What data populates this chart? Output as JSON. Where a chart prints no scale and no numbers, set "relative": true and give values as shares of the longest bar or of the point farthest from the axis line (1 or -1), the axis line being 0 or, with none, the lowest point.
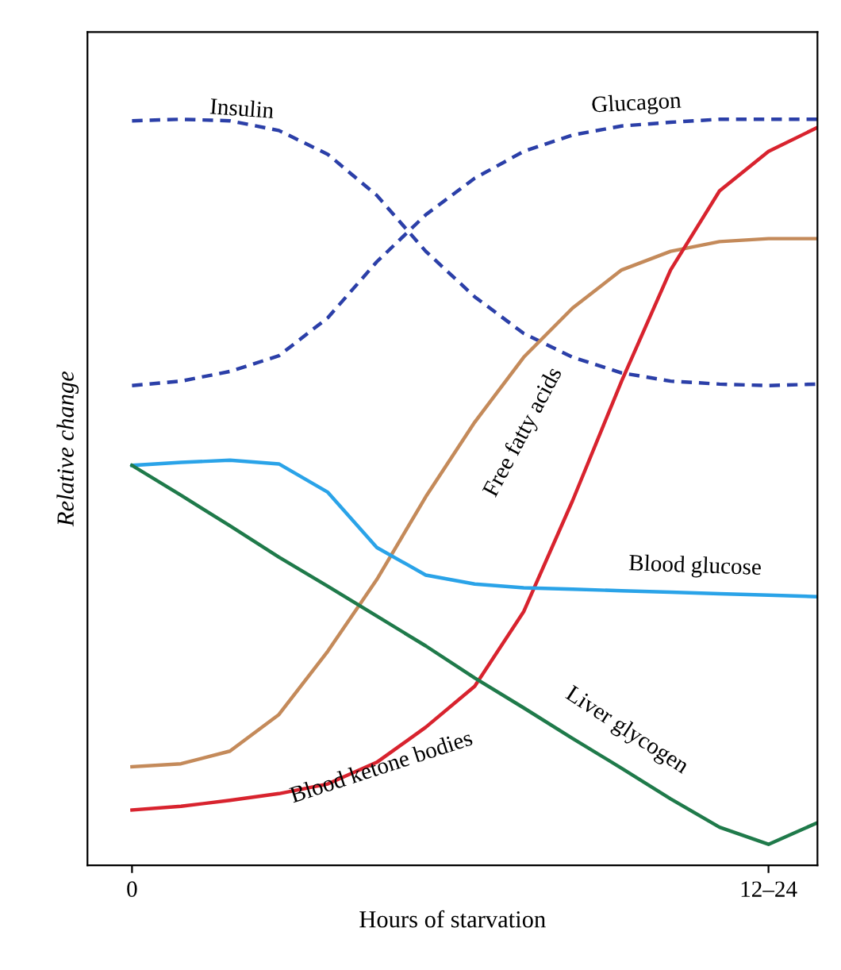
{
  "chart_data": {
    "type": "line",
    "relative": true,
    "xlabel": "Hours of starvation",
    "ylabel": "Relative change",
    "categories": [
      "0",
      null,
      null,
      null,
      null,
      null,
      null,
      null,
      null,
      null,
      null,
      null,
      null,
      "12–24",
      null
    ],
    "grid": false,
    "legend": false,
    "marker": "none",
    "series": [
      {
        "name": "Insulin",
        "color": "#2b3fa8",
        "line_style": "dashed",
        "values": [
          0.998,
          1.0,
          0.998,
          0.985,
          0.953,
          0.898,
          0.823,
          0.762,
          0.713,
          0.681,
          0.66,
          0.649,
          0.645,
          0.643,
          0.645
        ]
      },
      {
        "name": "Glucagon",
        "color": "#2b3fa8",
        "line_style": "dashed",
        "values": [
          0.643,
          0.649,
          0.662,
          0.683,
          0.734,
          0.809,
          0.872,
          0.921,
          0.957,
          0.979,
          0.991,
          0.996,
          1.0,
          1.0,
          1.0
        ]
      },
      {
        "name": "Free fatty acids",
        "color": "#c48a5a",
        "line_style": "solid",
        "values": [
          0.132,
          0.136,
          0.153,
          0.202,
          0.287,
          0.383,
          0.494,
          0.594,
          0.681,
          0.747,
          0.798,
          0.823,
          0.836,
          0.84,
          0.84
        ]
      },
      {
        "name": "Blood ketone bodies",
        "color": "#d8232e",
        "line_style": "solid",
        "values": [
          0.074,
          0.079,
          0.087,
          0.096,
          0.109,
          0.138,
          0.185,
          0.24,
          0.34,
          0.489,
          0.649,
          0.798,
          0.904,
          0.957,
          0.989
        ]
      },
      {
        "name": "Blood glucose",
        "color": "#2aa3e8",
        "line_style": "solid",
        "values": [
          0.536,
          0.54,
          0.543,
          0.538,
          0.5,
          0.426,
          0.389,
          0.377,
          0.372,
          0.37,
          0.368,
          0.366,
          0.364,
          0.362,
          0.36
        ]
      },
      {
        "name": "Liver glycogen",
        "color": "#1f7a4a",
        "line_style": "solid",
        "values": [
          0.536,
          0.496,
          0.455,
          0.413,
          0.374,
          0.334,
          0.294,
          0.251,
          0.211,
          0.17,
          0.13,
          0.089,
          0.051,
          0.028,
          0.057
        ]
      }
    ]
  }
}
